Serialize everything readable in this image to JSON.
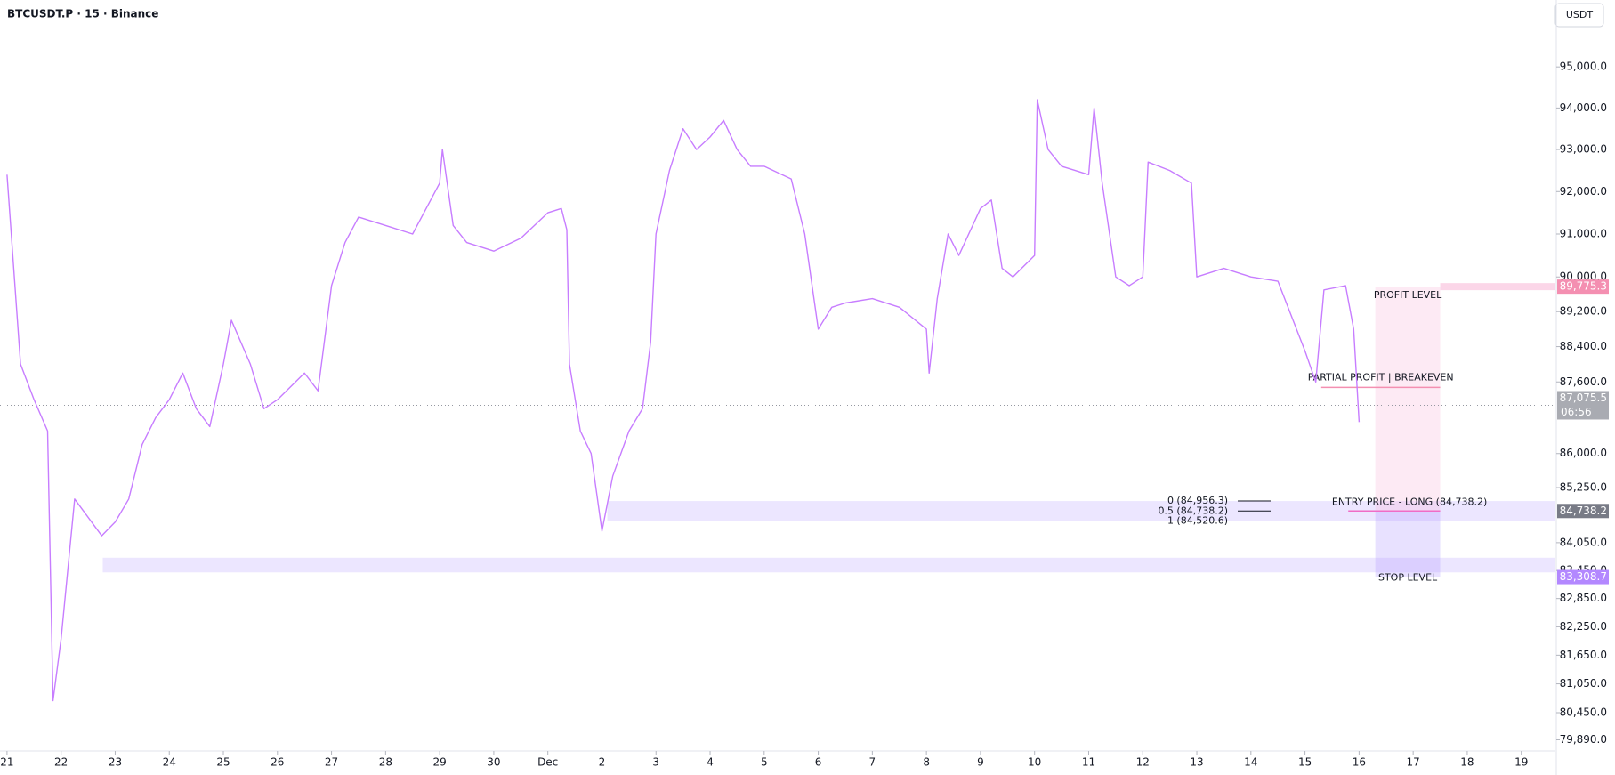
{
  "chart_data": {
    "type": "line",
    "header": "BTCUSDT.P · 15 · Binance",
    "currency_button": "USDT",
    "color": "#c77dff",
    "log": true,
    "xlim": [
      -0.13,
      28.63
    ],
    "ylim": [
      79680,
      96650
    ],
    "xticks": [
      {
        "value": 0,
        "label": "21"
      },
      {
        "value": 1,
        "label": "22"
      },
      {
        "value": 2,
        "label": "23"
      },
      {
        "value": 3,
        "label": "24"
      },
      {
        "value": 4,
        "label": "25"
      },
      {
        "value": 5,
        "label": "26"
      },
      {
        "value": 6,
        "label": "27"
      },
      {
        "value": 7,
        "label": "28"
      },
      {
        "value": 8,
        "label": "29"
      },
      {
        "value": 9,
        "label": "30"
      },
      {
        "value": 10,
        "label": "Dec"
      },
      {
        "value": 11,
        "label": "2"
      },
      {
        "value": 12,
        "label": "3"
      },
      {
        "value": 13,
        "label": "4"
      },
      {
        "value": 14,
        "label": "5"
      },
      {
        "value": 15,
        "label": "6"
      },
      {
        "value": 16,
        "label": "7"
      },
      {
        "value": 17,
        "label": "8"
      },
      {
        "value": 18,
        "label": "9"
      },
      {
        "value": 19,
        "label": "10"
      },
      {
        "value": 20,
        "label": "11"
      },
      {
        "value": 21,
        "label": "12"
      },
      {
        "value": 22,
        "label": "13"
      },
      {
        "value": 23,
        "label": "14"
      },
      {
        "value": 24,
        "label": "15"
      },
      {
        "value": 25,
        "label": "16"
      },
      {
        "value": 26,
        "label": "17"
      },
      {
        "value": 27,
        "label": "18"
      },
      {
        "value": 28,
        "label": "19"
      }
    ],
    "yticks": [
      {
        "value": 95000,
        "label": "95,000.0"
      },
      {
        "value": 94000,
        "label": "94,000.0"
      },
      {
        "value": 93000,
        "label": "93,000.0"
      },
      {
        "value": 92000,
        "label": "92,000.0"
      },
      {
        "value": 91000,
        "label": "91,000.0"
      },
      {
        "value": 90000,
        "label": "90,000.0"
      },
      {
        "value": 89200,
        "label": "89,200.0"
      },
      {
        "value": 88400,
        "label": "88,400.0"
      },
      {
        "value": 87600,
        "label": "87,600.0"
      },
      {
        "value": 86000,
        "label": "86,000.0"
      },
      {
        "value": 85250,
        "label": "85,250.0"
      },
      {
        "value": 84050,
        "label": "84,050.0"
      },
      {
        "value": 83450,
        "label": "83,450.0"
      },
      {
        "value": 82850,
        "label": "82,850.0"
      },
      {
        "value": 82250,
        "label": "82,250.0"
      },
      {
        "value": 81650,
        "label": "81,650.0"
      },
      {
        "value": 81050,
        "label": "81,050.0"
      },
      {
        "value": 80450,
        "label": "80,450.0"
      },
      {
        "value": 79890,
        "label": "79,890.0"
      }
    ],
    "x": [
      0,
      0.25,
      0.5,
      0.75,
      0.85,
      1,
      1.25,
      1.5,
      1.75,
      2,
      2.25,
      2.5,
      2.75,
      3,
      3.25,
      3.5,
      3.75,
      4,
      4.15,
      4.5,
      4.75,
      5,
      5.5,
      5.75,
      6,
      6.25,
      6.5,
      7,
      7.5,
      8,
      8.05,
      8.25,
      8.5,
      9,
      9.5,
      10,
      10.25,
      10.35,
      10.4,
      10.6,
      10.8,
      11,
      11.2,
      11.5,
      11.75,
      11.9,
      12,
      12.25,
      12.5,
      12.75,
      13,
      13.25,
      13.5,
      13.75,
      14,
      14.5,
      14.75,
      15,
      15.25,
      15.5,
      16,
      16.5,
      17,
      17.05,
      17.2,
      17.4,
      17.6,
      18,
      18.2,
      18.4,
      18.6,
      19,
      19.05,
      19.25,
      19.5,
      19.75,
      20,
      20.1,
      20.25,
      20.5,
      20.75,
      21,
      21.1,
      21.5,
      21.9,
      22,
      22.5,
      23,
      23.5,
      24,
      24.2,
      24.35,
      24.75,
      24.9,
      25
    ],
    "values": [
      92400,
      88000,
      87200,
      86500,
      80700,
      82000,
      85000,
      84600,
      84200,
      84500,
      85000,
      86200,
      86800,
      87200,
      87800,
      87000,
      86600,
      88000,
      89000,
      88000,
      87000,
      87200,
      87800,
      87400,
      89800,
      90800,
      91400,
      91200,
      91000,
      92200,
      93000,
      91200,
      90800,
      90600,
      90900,
      91500,
      91600,
      91100,
      88000,
      86500,
      86000,
      84300,
      85500,
      86500,
      87000,
      88500,
      91000,
      92500,
      93500,
      93000,
      93300,
      93700,
      93000,
      92600,
      92600,
      92300,
      91000,
      88800,
      89300,
      89400,
      89500,
      89300,
      88800,
      87800,
      89500,
      91000,
      90500,
      91600,
      91800,
      90200,
      90000,
      90500,
      94200,
      93000,
      92600,
      92500,
      92400,
      94000,
      92200,
      90000,
      89800,
      90000,
      92700,
      92500,
      92200,
      90000,
      90200,
      90000,
      89900,
      88300,
      87600,
      89700,
      89800,
      88800,
      86700
    ],
    "current": {
      "value": 87075.5,
      "label": "87,075.5",
      "countdown": "06:56"
    },
    "lower_zone": {
      "x_start": 1.77,
      "range": [
        83410,
        83725
      ]
    },
    "fib": {
      "x_start": 11.1,
      "levels": [
        {
          "value": 84956.3,
          "label": "0 (84,956.3)"
        },
        {
          "value": 84738.2,
          "label": "0.5 (84,738.2)"
        },
        {
          "value": 84520.6,
          "label": "1 (84,520.6)"
        }
      ]
    },
    "position": {
      "x": [
        25.3,
        26.5
      ],
      "profit": {
        "value": 89775.3,
        "label": "89,775.3",
        "text": "PROFIT LEVEL"
      },
      "partial": {
        "value": 87477,
        "x_start": 24.3,
        "text": "PARTIAL PROFIT | BREAKEVEN"
      },
      "entry": {
        "value": 84738.2,
        "label": "84,738.2",
        "text": "ENTRY PRICE - LONG (84,738.2)"
      },
      "stop": {
        "value": 83308.7,
        "label": "83,308.7",
        "text": "STOP LEVEL"
      }
    }
  }
}
